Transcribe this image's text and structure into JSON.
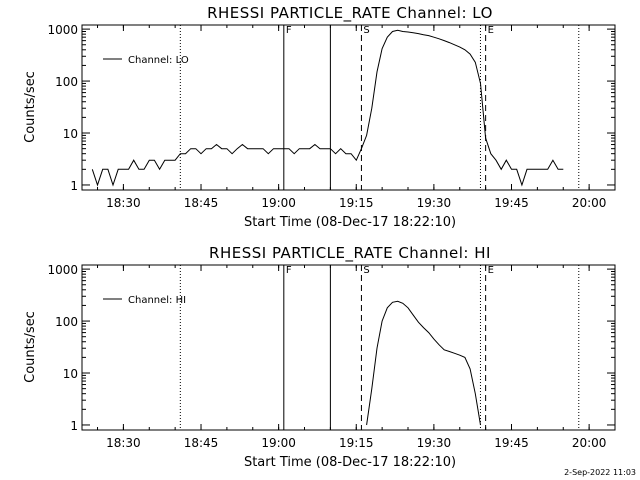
{
  "footer": {
    "timestamp": "2-Sep-2022 11:03"
  },
  "chart_data": [
    {
      "type": "line",
      "title": "RHESSI PARTICLE_RATE Channel: LO",
      "xlabel": "Start Time (08-Dec-17 18:22:10)",
      "ylabel": "Counts/sec",
      "yscale": "log",
      "xlim": [
        "18:22",
        "20:05"
      ],
      "ylim": [
        0.8,
        1200
      ],
      "xticks": [
        "18:30",
        "18:45",
        "19:00",
        "19:15",
        "19:30",
        "19:45",
        "20:00"
      ],
      "yticks": [
        "1",
        "10",
        "100",
        "1000"
      ],
      "legend": "top-left",
      "series": [
        {
          "name": "Channel: LO",
          "x": [
            "18:24",
            "18:25",
            "18:26",
            "18:27",
            "18:28",
            "18:29",
            "18:30",
            "18:31",
            "18:32",
            "18:33",
            "18:34",
            "18:35",
            "18:36",
            "18:37",
            "18:38",
            "18:39",
            "18:40",
            "18:41",
            "18:42",
            "18:43",
            "18:44",
            "18:45",
            "18:46",
            "18:47",
            "18:48",
            "18:49",
            "18:50",
            "18:51",
            "18:52",
            "18:53",
            "18:54",
            "18:55",
            "18:56",
            "18:57",
            "18:58",
            "18:59",
            "19:00",
            "19:01",
            "19:02",
            "19:03",
            "19:04",
            "19:05",
            "19:06",
            "19:07",
            "19:08",
            "19:09",
            "19:10",
            "19:11",
            "19:12",
            "19:13",
            "19:14",
            "19:15",
            "19:16",
            "19:17",
            "19:18",
            "19:19",
            "19:20",
            "19:21",
            "19:22",
            "19:23",
            "19:24",
            "19:25",
            "19:26",
            "19:27",
            "19:28",
            "19:29",
            "19:30",
            "19:31",
            "19:32",
            "19:33",
            "19:34",
            "19:35",
            "19:36",
            "19:37",
            "19:38",
            "19:39",
            "19:40",
            "19:41",
            "19:42",
            "19:43",
            "19:44",
            "19:45",
            "19:46",
            "19:47",
            "19:48",
            "19:49",
            "19:50",
            "19:51",
            "19:52",
            "19:53",
            "19:54",
            "19:55"
          ],
          "y": [
            2,
            1,
            2,
            2,
            1,
            2,
            2,
            2,
            3,
            2,
            2,
            3,
            3,
            2,
            3,
            3,
            3,
            4,
            4,
            5,
            5,
            4,
            5,
            5,
            6,
            5,
            5,
            4,
            5,
            6,
            5,
            5,
            5,
            5,
            4,
            5,
            5,
            5,
            5,
            4,
            5,
            5,
            5,
            6,
            5,
            5,
            5,
            4,
            5,
            4,
            4,
            3,
            5,
            9,
            30,
            150,
            420,
            700,
            900,
            950,
            900,
            880,
            850,
            820,
            780,
            750,
            700,
            650,
            600,
            550,
            500,
            450,
            400,
            330,
            230,
            90,
            8,
            4,
            3,
            2,
            3,
            2,
            2,
            1,
            2,
            2,
            2,
            2,
            2,
            3,
            2,
            2
          ]
        }
      ],
      "markers": [
        {
          "label": "F",
          "time": "19:01",
          "line": "solid"
        },
        {
          "label": "",
          "time": "19:10",
          "line": "solid"
        },
        {
          "label": "S",
          "time": "19:16",
          "line": "dashed"
        },
        {
          "label": "E",
          "time": "19:40",
          "line": "dashed"
        },
        {
          "label": "",
          "time": "18:41",
          "line": "dotted"
        },
        {
          "label": "",
          "time": "19:39",
          "line": "dotted"
        },
        {
          "label": "",
          "time": "19:58",
          "line": "dotted"
        }
      ]
    },
    {
      "type": "line",
      "title": "RHESSI PARTICLE_RATE Channel: HI",
      "xlabel": "Start Time (08-Dec-17 18:22:10)",
      "ylabel": "Counts/sec",
      "yscale": "log",
      "xlim": [
        "18:22",
        "20:05"
      ],
      "ylim": [
        0.8,
        1200
      ],
      "xticks": [
        "18:30",
        "18:45",
        "19:00",
        "19:15",
        "19:30",
        "19:45",
        "20:00"
      ],
      "yticks": [
        "1",
        "10",
        "100",
        "1000"
      ],
      "legend": "top-left",
      "series": [
        {
          "name": "Channel: HI",
          "x": [
            "19:17",
            "19:18",
            "19:19",
            "19:20",
            "19:21",
            "19:22",
            "19:23",
            "19:24",
            "19:25",
            "19:26",
            "19:27",
            "19:28",
            "19:29",
            "19:30",
            "19:31",
            "19:32",
            "19:33",
            "19:34",
            "19:35",
            "19:36",
            "19:37",
            "19:38",
            "19:39"
          ],
          "y": [
            1,
            5,
            30,
            100,
            180,
            230,
            240,
            220,
            180,
            130,
            95,
            75,
            60,
            45,
            35,
            28,
            26,
            24,
            22,
            20,
            12,
            4,
            1
          ]
        }
      ],
      "markers": [
        {
          "label": "F",
          "time": "19:01",
          "line": "solid"
        },
        {
          "label": "",
          "time": "19:10",
          "line": "solid"
        },
        {
          "label": "S",
          "time": "19:16",
          "line": "dashed"
        },
        {
          "label": "E",
          "time": "19:40",
          "line": "dashed"
        },
        {
          "label": "",
          "time": "18:41",
          "line": "dotted"
        },
        {
          "label": "",
          "time": "19:39",
          "line": "dotted"
        },
        {
          "label": "",
          "time": "19:58",
          "line": "dotted"
        }
      ]
    }
  ]
}
